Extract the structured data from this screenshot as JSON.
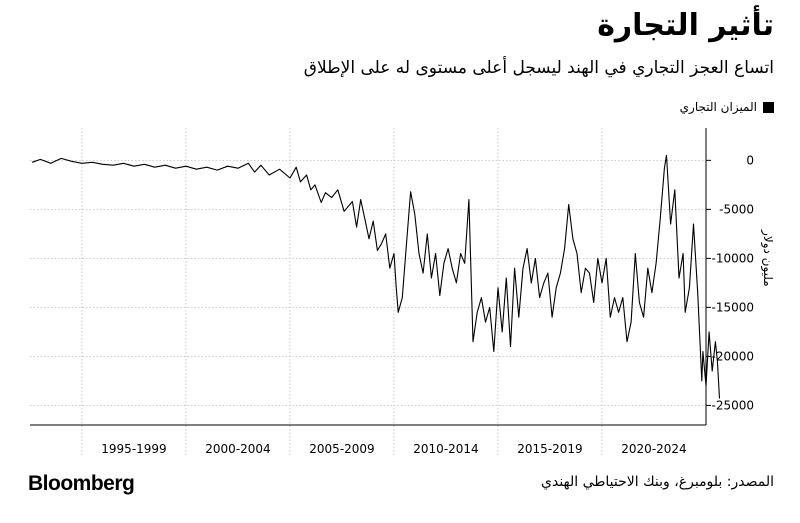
{
  "header": {
    "title": "تأثير التجارة",
    "subtitle": "اتساع العجز التجاري في الهند ليسجل أعلى مستوى له على الإطلاق"
  },
  "legend": {
    "label": "الميزان التجاري",
    "color": "#000000"
  },
  "footer": {
    "brand": "Bloomberg",
    "source": "المصدر: بلومبرغ، وبنك الاحتياطي الهندي"
  },
  "chart_data": {
    "type": "line",
    "title": "تأثير التجارة",
    "ylabel": "مليون دولار",
    "ylim": [
      -27000,
      3300
    ],
    "yticks": [
      0,
      -5000,
      -10000,
      -15000,
      -20000,
      -25000
    ],
    "ytick_labels": [
      "0",
      "-5000",
      "-10000",
      "-15000",
      "-20000",
      "-25000"
    ],
    "x_start_year": 1992.5,
    "x_end_year": 2025.0,
    "x_dividers": [
      1995.0,
      2000.0,
      2005.0,
      2010.0,
      2015.0,
      2020.0
    ],
    "xtick_labels": [
      {
        "label": "1995-1999",
        "center": 1997.5
      },
      {
        "label": "2000-2004",
        "center": 2002.5
      },
      {
        "label": "2005-2009",
        "center": 2007.5
      },
      {
        "label": "2010-2014",
        "center": 2012.5
      },
      {
        "label": "2015-2019",
        "center": 2017.5
      },
      {
        "label": "2020-2024",
        "center": 2022.5
      }
    ],
    "grid": true,
    "series": [
      {
        "name": "الميزان التجاري",
        "color": "#000000",
        "points": [
          [
            1992.6,
            -200
          ],
          [
            1993.0,
            100
          ],
          [
            1993.5,
            -300
          ],
          [
            1994.0,
            200
          ],
          [
            1994.5,
            -100
          ],
          [
            1995.0,
            -300
          ],
          [
            1995.5,
            -200
          ],
          [
            1996.0,
            -400
          ],
          [
            1996.5,
            -500
          ],
          [
            1997.0,
            -300
          ],
          [
            1997.5,
            -600
          ],
          [
            1998.0,
            -400
          ],
          [
            1998.5,
            -700
          ],
          [
            1999.0,
            -500
          ],
          [
            1999.5,
            -800
          ],
          [
            2000.0,
            -600
          ],
          [
            2000.5,
            -900
          ],
          [
            2001.0,
            -700
          ],
          [
            2001.5,
            -1000
          ],
          [
            2002.0,
            -600
          ],
          [
            2002.5,
            -800
          ],
          [
            2003.0,
            -300
          ],
          [
            2003.3,
            -1200
          ],
          [
            2003.6,
            -500
          ],
          [
            2004.0,
            -1500
          ],
          [
            2004.5,
            -900
          ],
          [
            2005.0,
            -1800
          ],
          [
            2005.3,
            -700
          ],
          [
            2005.5,
            -2200
          ],
          [
            2005.8,
            -1500
          ],
          [
            2006.0,
            -3000
          ],
          [
            2006.2,
            -2500
          ],
          [
            2006.5,
            -4300
          ],
          [
            2006.7,
            -3300
          ],
          [
            2007.0,
            -3800
          ],
          [
            2007.3,
            -3000
          ],
          [
            2007.6,
            -5200
          ],
          [
            2008.0,
            -4200
          ],
          [
            2008.2,
            -6800
          ],
          [
            2008.4,
            -4000
          ],
          [
            2008.6,
            -6000
          ],
          [
            2008.8,
            -8000
          ],
          [
            2009.0,
            -6200
          ],
          [
            2009.2,
            -9200
          ],
          [
            2009.4,
            -8500
          ],
          [
            2009.6,
            -7500
          ],
          [
            2009.8,
            -11000
          ],
          [
            2010.0,
            -9500
          ],
          [
            2010.1,
            -12800
          ],
          [
            2010.2,
            -15500
          ],
          [
            2010.4,
            -14000
          ],
          [
            2010.6,
            -8500
          ],
          [
            2010.8,
            -3200
          ],
          [
            2011.0,
            -5500
          ],
          [
            2011.2,
            -9500
          ],
          [
            2011.4,
            -11500
          ],
          [
            2011.6,
            -7500
          ],
          [
            2011.8,
            -12000
          ],
          [
            2012.0,
            -9500
          ],
          [
            2012.2,
            -13800
          ],
          [
            2012.4,
            -10500
          ],
          [
            2012.6,
            -9000
          ],
          [
            2012.8,
            -11000
          ],
          [
            2013.0,
            -12500
          ],
          [
            2013.2,
            -9500
          ],
          [
            2013.4,
            -10500
          ],
          [
            2013.6,
            -4000
          ],
          [
            2013.8,
            -18500
          ],
          [
            2014.0,
            -15500
          ],
          [
            2014.2,
            -14000
          ],
          [
            2014.4,
            -16500
          ],
          [
            2014.6,
            -15000
          ],
          [
            2014.8,
            -19500
          ],
          [
            2015.0,
            -13000
          ],
          [
            2015.2,
            -17500
          ],
          [
            2015.4,
            -12000
          ],
          [
            2015.6,
            -19000
          ],
          [
            2015.8,
            -11000
          ],
          [
            2016.0,
            -16000
          ],
          [
            2016.2,
            -11000
          ],
          [
            2016.4,
            -9000
          ],
          [
            2016.6,
            -12500
          ],
          [
            2016.8,
            -10000
          ],
          [
            2017.0,
            -14000
          ],
          [
            2017.2,
            -12500
          ],
          [
            2017.4,
            -11500
          ],
          [
            2017.6,
            -16000
          ],
          [
            2017.8,
            -13000
          ],
          [
            2018.0,
            -11500
          ],
          [
            2018.2,
            -9000
          ],
          [
            2018.4,
            -4500
          ],
          [
            2018.6,
            -8000
          ],
          [
            2018.8,
            -9500
          ],
          [
            2019.0,
            -13500
          ],
          [
            2019.2,
            -11000
          ],
          [
            2019.4,
            -11500
          ],
          [
            2019.6,
            -14500
          ],
          [
            2019.8,
            -10000
          ],
          [
            2020.0,
            -12500
          ],
          [
            2020.2,
            -10000
          ],
          [
            2020.4,
            -16000
          ],
          [
            2020.6,
            -14000
          ],
          [
            2020.8,
            -15500
          ],
          [
            2021.0,
            -14000
          ],
          [
            2021.2,
            -18500
          ],
          [
            2021.4,
            -16500
          ],
          [
            2021.6,
            -9500
          ],
          [
            2021.8,
            -14500
          ],
          [
            2022.0,
            -16000
          ],
          [
            2022.2,
            -11000
          ],
          [
            2022.4,
            -13500
          ],
          [
            2022.6,
            -10500
          ],
          [
            2022.8,
            -6000
          ],
          [
            2023.0,
            -800
          ],
          [
            2023.1,
            500
          ],
          [
            2023.3,
            -6500
          ],
          [
            2023.5,
            -3000
          ],
          [
            2023.7,
            -12000
          ],
          [
            2023.9,
            -9500
          ],
          [
            2024.0,
            -15500
          ],
          [
            2024.2,
            -13000
          ],
          [
            2024.4,
            -6500
          ],
          [
            2024.6,
            -13500
          ],
          [
            2024.8,
            -22500
          ],
          [
            2024.85,
            -19500
          ],
          [
            2025.0,
            -23000
          ],
          [
            2025.15,
            -17500
          ],
          [
            2025.3,
            -21500
          ],
          [
            2025.45,
            -18500
          ],
          [
            2025.55,
            -20500
          ],
          [
            2025.65,
            -24300
          ]
        ]
      }
    ]
  }
}
